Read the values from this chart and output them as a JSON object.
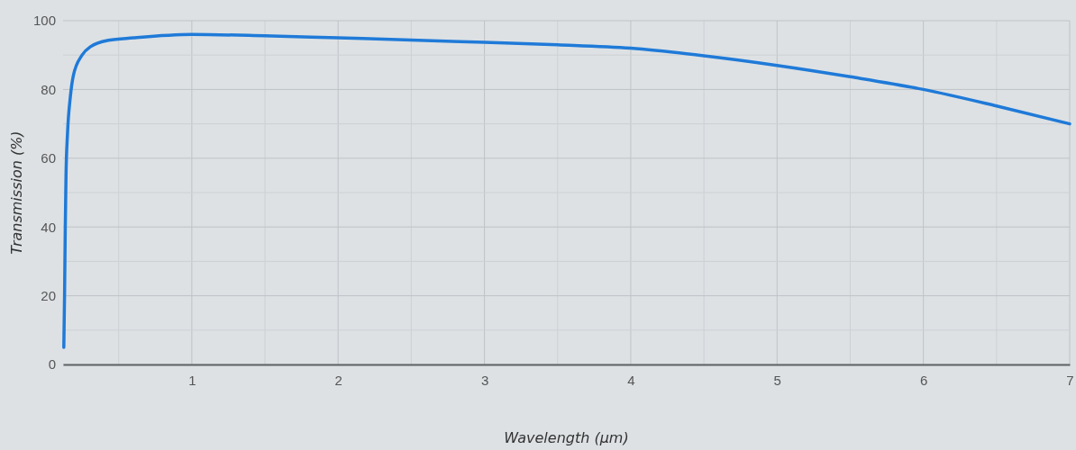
{
  "chart_data": {
    "type": "line",
    "xlabel": "Wavelength (µm)",
    "ylabel": "Transmission (%)",
    "xlim": [
      0.12,
      7
    ],
    "ylim": [
      0,
      100
    ],
    "xticks": [
      {
        "value": 0.5,
        "label": null
      },
      1,
      {
        "value": 1.5,
        "label": null
      },
      2,
      {
        "value": 2.5,
        "label": null
      },
      3,
      {
        "value": 3.5,
        "label": null
      },
      4,
      {
        "value": 4.5,
        "label": null
      },
      5,
      {
        "value": 5.5,
        "label": null
      },
      6,
      {
        "value": 6.5,
        "label": null
      },
      7
    ],
    "yticks": [
      0,
      {
        "value": 10,
        "label": null
      },
      20,
      {
        "value": 30,
        "label": null
      },
      40,
      {
        "value": 50,
        "label": null
      },
      60,
      {
        "value": 70,
        "label": null
      },
      80,
      {
        "value": 90,
        "label": null
      },
      100
    ],
    "grid": true,
    "line_style": "solid",
    "marker": "none",
    "series": [
      {
        "color": "#1f7ad8",
        "x": [
          0.125,
          0.13,
          0.135,
          0.14,
          0.15,
          0.17,
          0.19,
          0.25,
          0.31,
          0.43,
          0.6,
          1,
          1.5,
          2,
          2.5,
          3,
          3.5,
          4,
          4.5,
          5,
          5.5,
          6,
          6.5,
          7
        ],
        "values": [
          5,
          20,
          40,
          55,
          67,
          78,
          84,
          90,
          92.5,
          94.3,
          95,
          96,
          95.6,
          95,
          94.4,
          93.7,
          93,
          92,
          89.8,
          87,
          83.7,
          80,
          75.2,
          70
        ]
      }
    ]
  }
}
